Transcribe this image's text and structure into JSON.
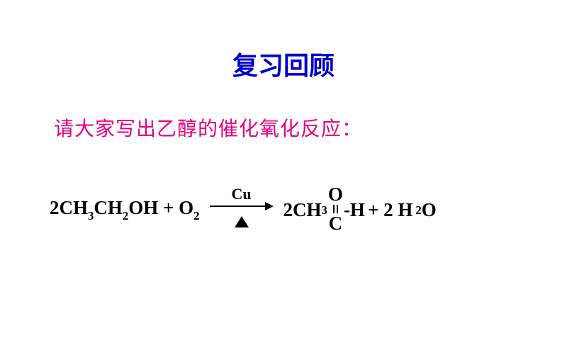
{
  "title": {
    "text": "复习回顾",
    "color": "#0000cc",
    "fontsize": 36
  },
  "prompt": {
    "text": "请大家写出乙醇的催化氧化反应：",
    "color": "#e6007e",
    "fontsize": 28
  },
  "equation": {
    "color": "#000000",
    "fontsize": 27,
    "lhs": {
      "coef1": "2",
      "r1_a": "CH",
      "r1_s1": "3",
      "r1_b": "CH",
      "r1_s2": "2",
      "r1_c": "OH",
      "plus": " + ",
      "r2_a": "O",
      "r2_s1": "2"
    },
    "arrow": {
      "catalyst": "Cu",
      "catalyst_fontsize": 22,
      "shaft_width": 78,
      "head_width": 12,
      "triangle_half": 10,
      "triangle_height": 16
    },
    "rhs": {
      "coef2": "2",
      "p1_a": "CH",
      "p1_s1": "3",
      "struct_o": "O",
      "struct_bond_height": 12,
      "struct_c": "C",
      "p1_b": "-H",
      "plus": "  + 2 H",
      "p2_s1": "2",
      "p2_a": "O"
    }
  }
}
